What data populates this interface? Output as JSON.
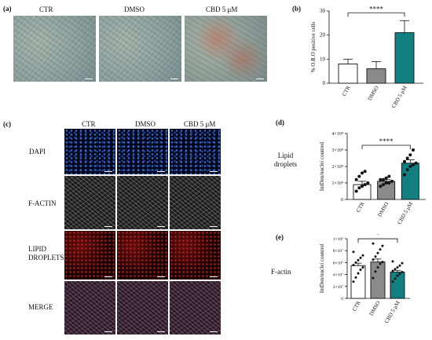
{
  "panels": {
    "a": {
      "label": "(a)",
      "images": [
        "CTR",
        "DMSO",
        "CBD 5 μM"
      ]
    },
    "b": {
      "label": "(b)"
    },
    "c": {
      "label": "(c)",
      "columns": [
        "CTR",
        "DMSO",
        "CBD 5 μM"
      ],
      "rows": [
        "DAPI",
        "F-ACTIN",
        "LIPID\nDROPLETS",
        "MERGE"
      ]
    },
    "d": {
      "label": "(d)",
      "side_title": "Lipid\ndroplets"
    },
    "e": {
      "label": "(e)",
      "side_title": "F-actin"
    }
  },
  "colors": {
    "ctr": "#ffffff",
    "dmso": "#8a8a8a",
    "cbd": "#147f80",
    "stroke": "#111111"
  },
  "chart_data": [
    {
      "id": "b",
      "type": "bar",
      "categories": [
        "CTR",
        "DMSO",
        "CBD 5 μM"
      ],
      "values": [
        8,
        6,
        21
      ],
      "errors": [
        2,
        3,
        5
      ],
      "ylabel": "% O.R.O positive cells",
      "ylim": [
        0,
        30
      ],
      "yticks": [
        0,
        10,
        20,
        30
      ],
      "significance": "****"
    },
    {
      "id": "d",
      "type": "bar",
      "categories": [
        "CTR",
        "DMSO",
        "CBD 5 μM"
      ],
      "values": [
        9,
        11,
        22
      ],
      "errors": [
        2,
        1,
        2
      ],
      "ylabel": "IntDen/nuclei counted",
      "ylim": [
        0,
        40
      ],
      "yticks": [
        0,
        10,
        20,
        30,
        40
      ],
      "yticklabels": [
        "0",
        "1×10⁴",
        "2×10⁴",
        "3×10⁴",
        "4×10⁴"
      ],
      "significance": "****",
      "points": [
        [
          5,
          7,
          8,
          9,
          10,
          12,
          14,
          16,
          17
        ],
        [
          8,
          9,
          10,
          10,
          11,
          12,
          12,
          13,
          14
        ],
        [
          15,
          18,
          20,
          21,
          22,
          23,
          25,
          27,
          30
        ]
      ]
    },
    {
      "id": "e",
      "type": "bar",
      "categories": [
        "CTR",
        "DMSO",
        "CBD 5 μM"
      ],
      "values": [
        5.5,
        6.1,
        4.4
      ],
      "errors": [
        0.4,
        0.5,
        0.3
      ],
      "ylabel": "IntDen/nuclei counted",
      "ylim": [
        0,
        10
      ],
      "yticks": [
        0,
        2,
        4,
        6,
        8,
        10
      ],
      "yticklabels": [
        "0",
        "2×10⁷",
        "4×10⁷",
        "6×10⁷",
        "8×10⁷",
        "1×10⁸"
      ],
      "significance": "*",
      "points": [
        [
          2.8,
          3.5,
          4.2,
          4.8,
          5.2,
          5.6,
          6.0,
          6.4,
          6.8,
          7.2,
          7.8
        ],
        [
          3.4,
          4.5,
          5.2,
          5.8,
          6.1,
          6.5,
          7.0,
          7.6,
          8.2,
          8.8,
          9.2
        ],
        [
          2.8,
          3.3,
          3.8,
          4.1,
          4.4,
          4.6,
          4.9,
          5.2,
          5.5,
          5.9,
          6.2
        ]
      ]
    }
  ]
}
